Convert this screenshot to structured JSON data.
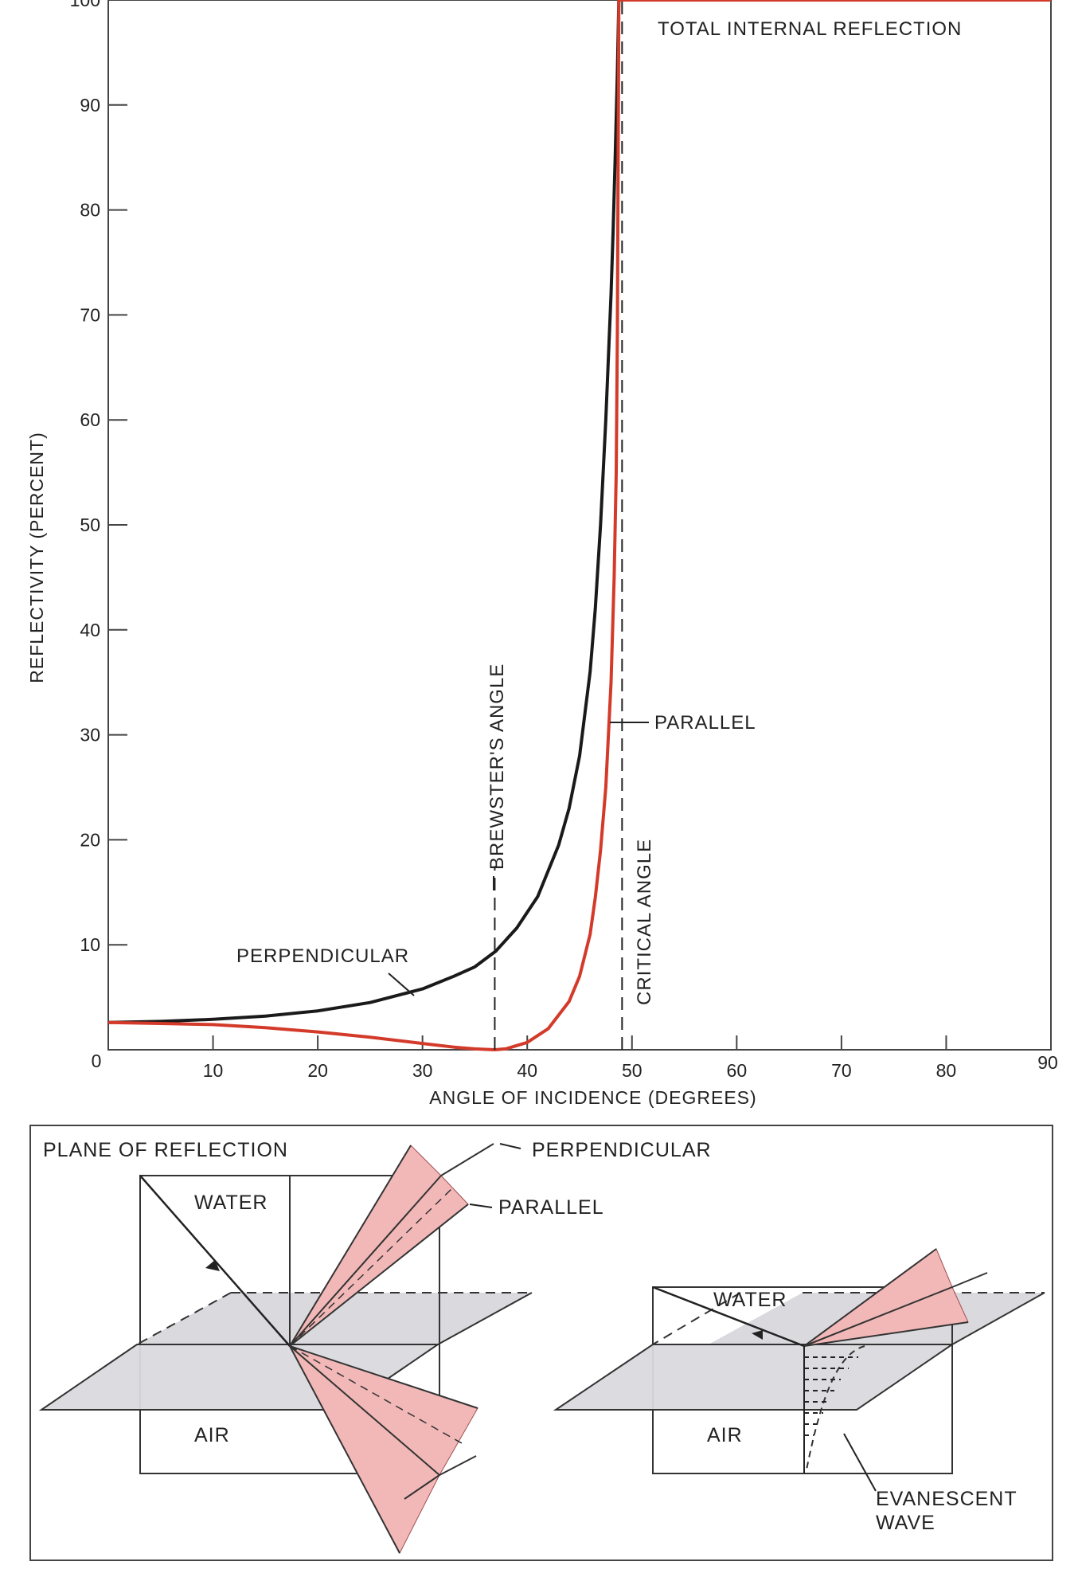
{
  "chart_data": {
    "type": "line",
    "title": "",
    "xlabel": "ANGLE OF INCIDENCE (DEGREES)",
    "ylabel": "REFLECTIVITY (PERCENT)",
    "xlim": [
      0,
      90
    ],
    "ylim": [
      0,
      100
    ],
    "x_ticks": [
      "0",
      "10",
      "20",
      "30",
      "40",
      "50",
      "60",
      "70",
      "80",
      "90"
    ],
    "y_ticks": [
      "0",
      "10",
      "20",
      "30",
      "40",
      "50",
      "60",
      "70",
      "80",
      "90",
      "100"
    ],
    "grid": false,
    "legend": "none",
    "series": [
      {
        "name": "PERPENDICULAR",
        "color": "#1a1a1a",
        "x": [
          0,
          5,
          10,
          15,
          20,
          25,
          30,
          33,
          35,
          37,
          39,
          41,
          43,
          44,
          45,
          46,
          46.5,
          47,
          47.5,
          48,
          48.2,
          48.4,
          48.6,
          48.75,
          49,
          55,
          60,
          70,
          80,
          90
        ],
        "y": [
          2.6,
          2.7,
          2.9,
          3.2,
          3.7,
          4.5,
          5.8,
          7.0,
          7.9,
          9.4,
          11.6,
          14.6,
          19.5,
          23.0,
          28.0,
          36.0,
          42.0,
          50.0,
          60.0,
          72.0,
          78.0,
          85.0,
          93.0,
          100,
          100,
          100,
          100,
          100,
          100,
          100
        ]
      },
      {
        "name": "PARALLEL",
        "color": "#d33a2a",
        "x": [
          0,
          5,
          10,
          15,
          20,
          25,
          30,
          33,
          35,
          36.9,
          38,
          40,
          42,
          44,
          45,
          46,
          46.5,
          47,
          47.5,
          48,
          48.3,
          48.5,
          48.6,
          48.75,
          49,
          55,
          60,
          70,
          80,
          90
        ],
        "y": [
          2.6,
          2.5,
          2.4,
          2.1,
          1.7,
          1.2,
          0.6,
          0.25,
          0.08,
          0,
          0.1,
          0.7,
          2.0,
          4.6,
          7.0,
          11.0,
          14.5,
          19.0,
          25.0,
          35.0,
          45.0,
          55.0,
          68.0,
          100,
          100,
          100,
          100,
          100,
          100,
          100
        ]
      }
    ],
    "annotations": {
      "total_internal_reflection": "TOTAL INTERNAL REFLECTION",
      "perpendicular": "PERPENDICULAR",
      "parallel": "PARALLEL",
      "brewsters_angle": "BREWSTER'S ANGLE",
      "critical_angle": "CRITICAL ANGLE",
      "brewster_x": 36.9,
      "critical_x": 48.75
    }
  },
  "diagram": {
    "plane_of_reflection": "PLANE OF REFLECTION",
    "perpendicular": "PERPENDICULAR",
    "parallel": "PARALLEL",
    "left_water": "WATER",
    "left_air": "AIR",
    "right_water": "WATER",
    "right_air": "AIR",
    "evanescent_line1": "EVANESCENT",
    "evanescent_line2": "WAVE",
    "pink": "#f2b8b8",
    "gray": "#d9d9de"
  }
}
